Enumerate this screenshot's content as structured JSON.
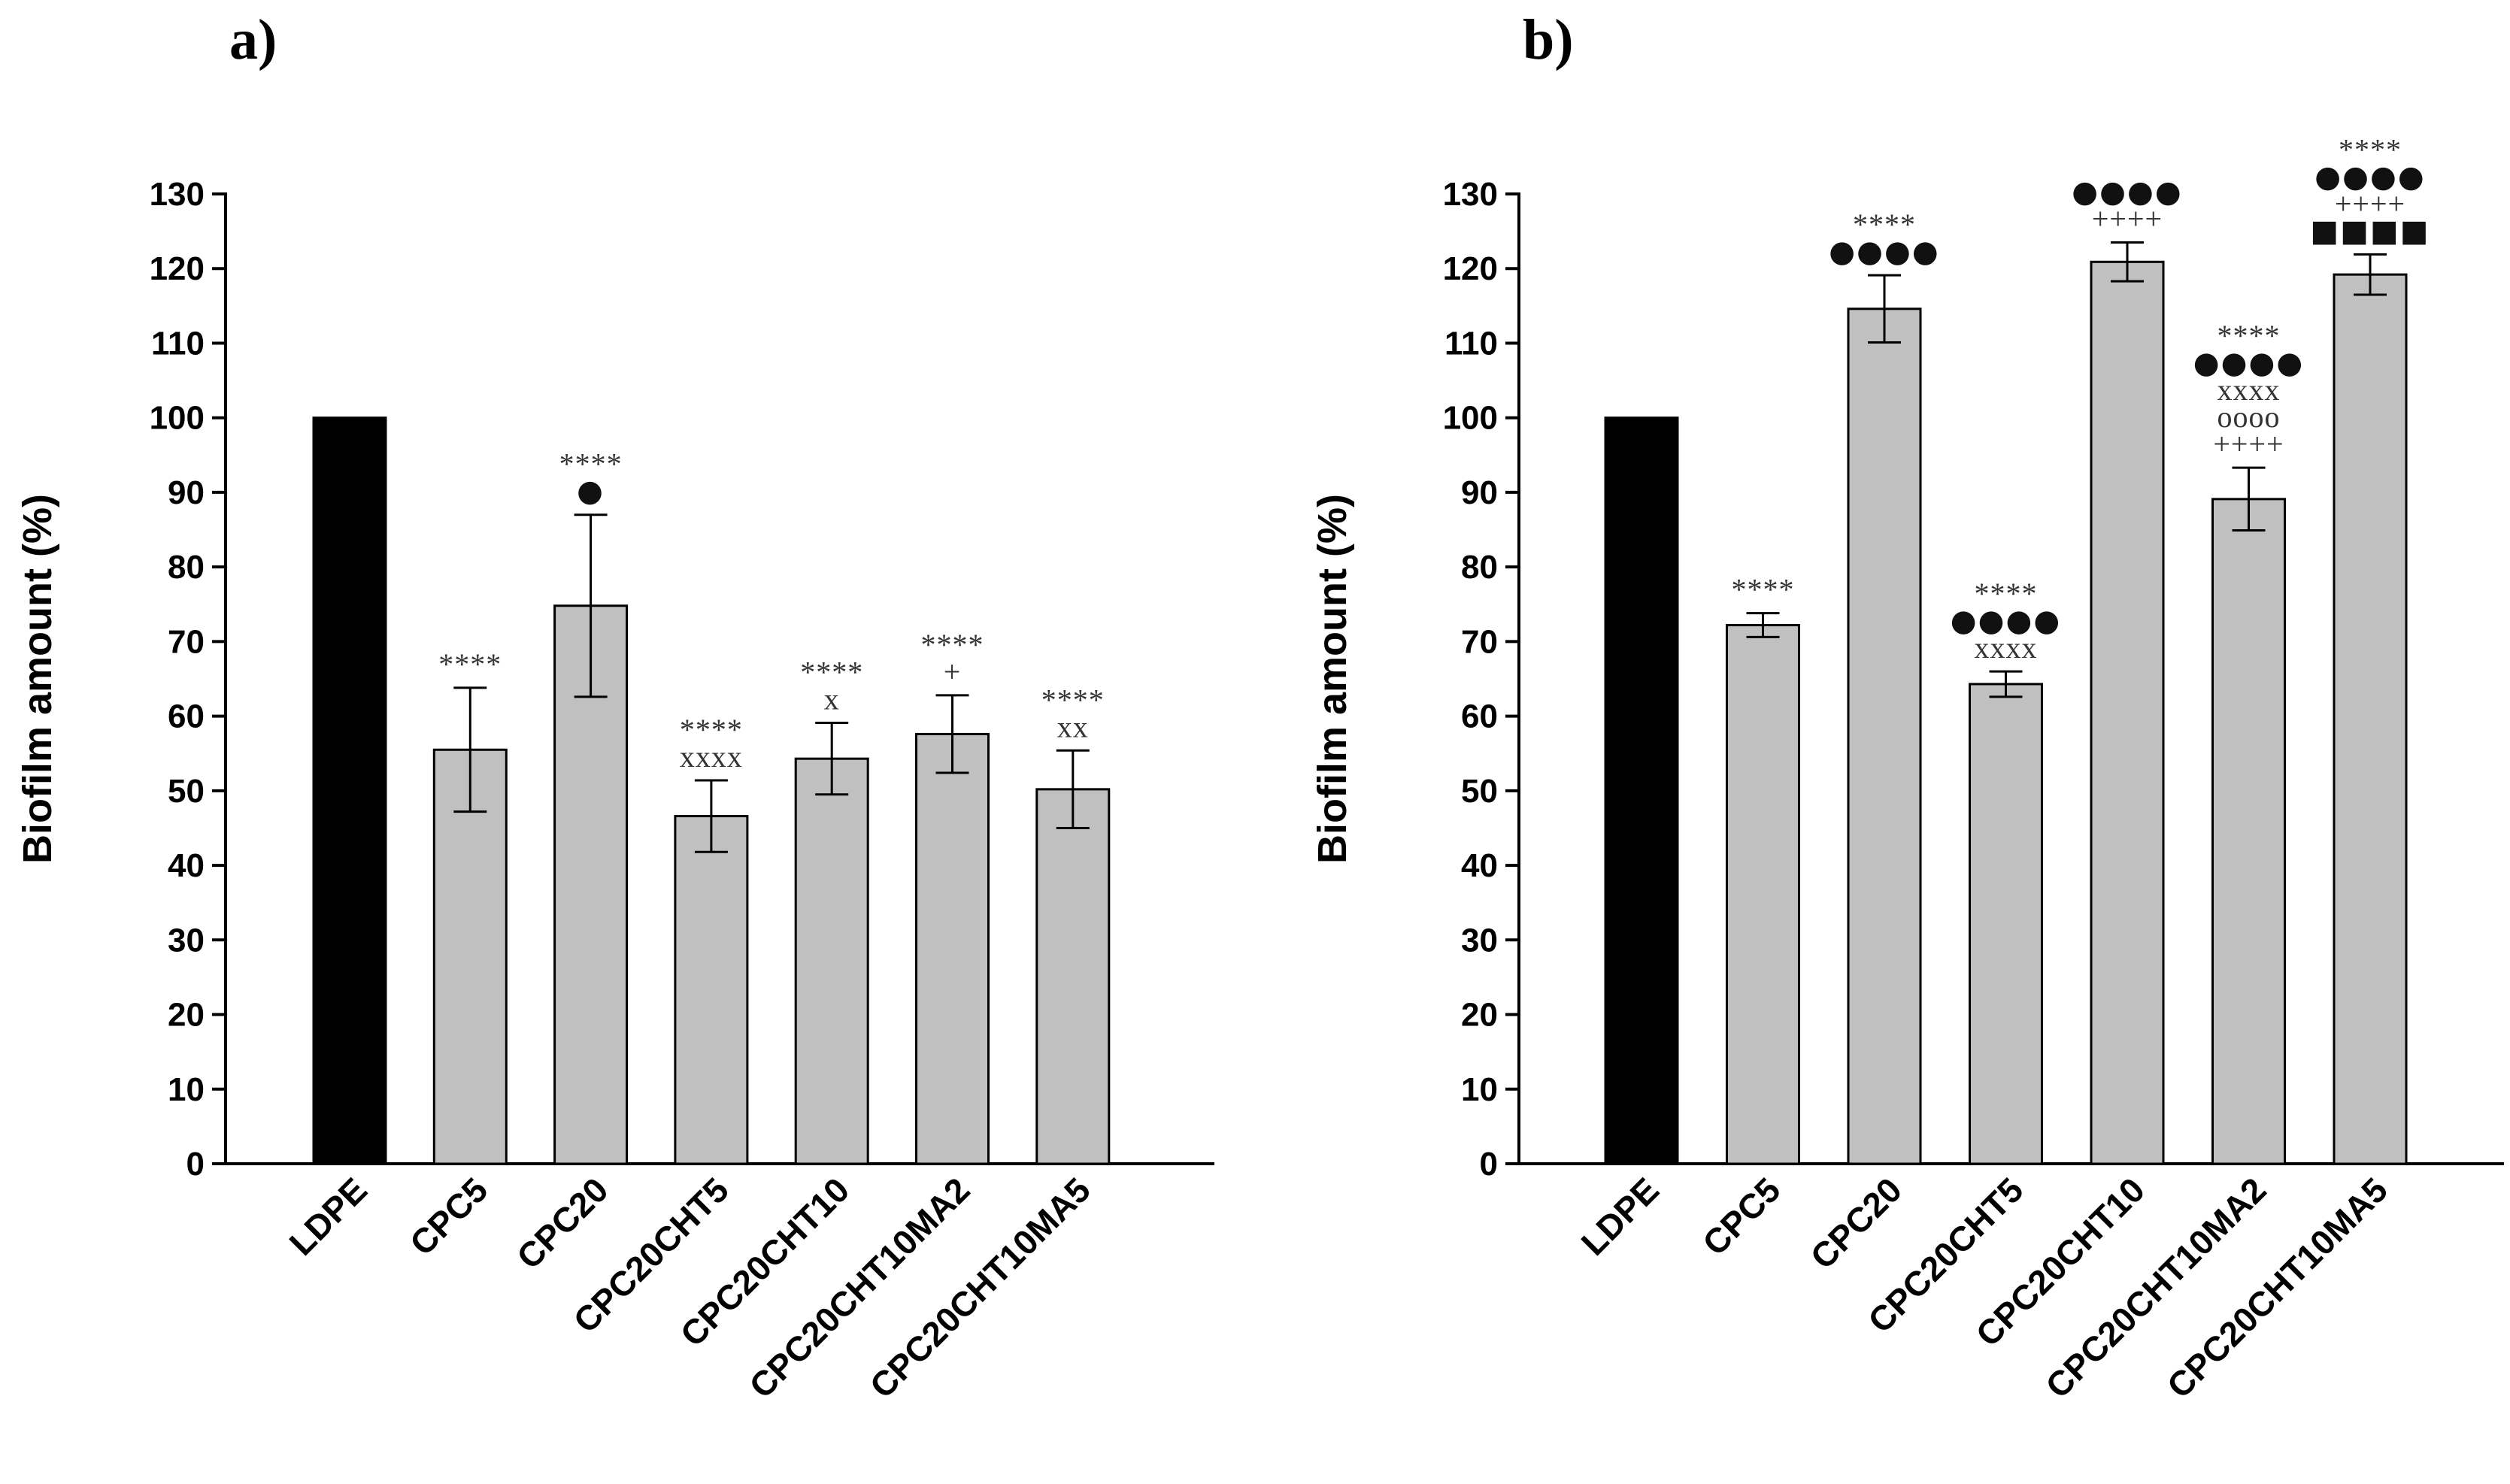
{
  "chart_data": [
    {
      "type": "bar",
      "panel_label": "a)",
      "ylabel": "Biofilm amount (%)",
      "xlabel": "",
      "ylim": [
        0,
        130
      ],
      "yticks": [
        "0",
        "10",
        "20",
        "30",
        "40",
        "50",
        "60",
        "70",
        "80",
        "90",
        "100",
        "110",
        "120",
        "130"
      ],
      "categories": [
        "LDPE",
        "CPC5",
        "CPC20",
        "CPC20CHT5",
        "CPC20CHT10",
        "CPC20CHT10MA2",
        "CPC20CHT10MA5"
      ],
      "values": [
        100,
        55.5,
        74.8,
        46.6,
        54.3,
        57.6,
        50.2
      ],
      "errors": [
        0,
        8.3,
        12.2,
        4.8,
        4.8,
        5.2,
        5.2
      ],
      "colors": [
        "#000000",
        "#c0c0c0",
        "#c0c0c0",
        "#c0c0c0",
        "#c0c0c0",
        "#c0c0c0",
        "#c0c0c0"
      ],
      "annotations": [
        [],
        [
          {
            "text": "****",
            "kind": "serif"
          }
        ],
        [
          {
            "text": "****",
            "kind": "serif"
          },
          {
            "text": "●",
            "kind": "sym"
          }
        ],
        [
          {
            "text": "****",
            "kind": "serif"
          },
          {
            "text": "xxxx",
            "kind": "serif"
          }
        ],
        [
          {
            "text": "****",
            "kind": "serif"
          },
          {
            "text": "x",
            "kind": "serif"
          }
        ],
        [
          {
            "text": "****",
            "kind": "serif"
          },
          {
            "text": "+",
            "kind": "serif"
          }
        ],
        [
          {
            "text": "****",
            "kind": "serif"
          },
          {
            "text": "xx",
            "kind": "serif"
          }
        ]
      ]
    },
    {
      "type": "bar",
      "panel_label": "b)",
      "ylabel": "Biofilm amount (%)",
      "xlabel": "",
      "ylim": [
        0,
        130
      ],
      "yticks": [
        "0",
        "10",
        "20",
        "30",
        "40",
        "50",
        "60",
        "70",
        "80",
        "90",
        "100",
        "110",
        "120",
        "130"
      ],
      "categories": [
        "LDPE",
        "CPC5",
        "CPC20",
        "CPC20CHT5",
        "CPC20CHT10",
        "CPC20CHT10MA2",
        "CPC20CHT10MA5"
      ],
      "values": [
        100,
        72.2,
        114.6,
        64.3,
        120.9,
        89.1,
        119.2
      ],
      "errors": [
        0,
        1.6,
        4.5,
        1.7,
        2.6,
        4.2,
        2.7
      ],
      "colors": [
        "#000000",
        "#c0c0c0",
        "#c0c0c0",
        "#c0c0c0",
        "#c0c0c0",
        "#c0c0c0",
        "#c0c0c0"
      ],
      "annotations": [
        [],
        [
          {
            "text": "****",
            "kind": "serif"
          }
        ],
        [
          {
            "text": "****",
            "kind": "serif"
          },
          {
            "text": "●●●●",
            "kind": "sym"
          }
        ],
        [
          {
            "text": "****",
            "kind": "serif"
          },
          {
            "text": "●●●●",
            "kind": "sym"
          },
          {
            "text": "xxxx",
            "kind": "serif"
          }
        ],
        [
          {
            "text": "●●●●",
            "kind": "sym"
          },
          {
            "text": "++++",
            "kind": "serif"
          }
        ],
        [
          {
            "text": "****",
            "kind": "serif"
          },
          {
            "text": "●●●●",
            "kind": "sym"
          },
          {
            "text": "xxxx",
            "kind": "serif"
          },
          {
            "text": "oooo",
            "kind": "serif"
          },
          {
            "text": "++++",
            "kind": "serif"
          }
        ],
        [
          {
            "text": "****",
            "kind": "serif"
          },
          {
            "text": "●●●●",
            "kind": "sym"
          },
          {
            "text": "++++",
            "kind": "serif"
          },
          {
            "text": "■■■■",
            "kind": "sym"
          }
        ]
      ]
    }
  ]
}
